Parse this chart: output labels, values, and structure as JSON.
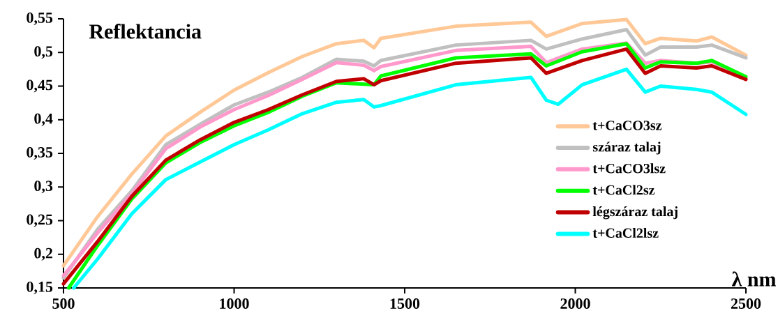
{
  "chart_data": {
    "type": "line",
    "title": "Reflektancia",
    "xlabel": "λ nm",
    "xlim": [
      500,
      2500
    ],
    "ylim": [
      0.15,
      0.55
    ],
    "xticks": [
      500,
      1000,
      1500,
      2000,
      2500
    ],
    "yticks": [
      {
        "value": 0.15,
        "label": "0,15"
      },
      {
        "value": 0.2,
        "label": "0,2"
      },
      {
        "value": 0.25,
        "label": "0,25"
      },
      {
        "value": 0.3,
        "label": "0,3"
      },
      {
        "value": 0.35,
        "label": "0,35"
      },
      {
        "value": 0.4,
        "label": "0,4"
      },
      {
        "value": 0.45,
        "label": "0,45"
      },
      {
        "value": 0.5,
        "label": "0,5"
      },
      {
        "value": 0.55,
        "label": "0,55"
      }
    ],
    "grid": false,
    "legend": "right",
    "series": [
      {
        "name": "t+CaCO3sz",
        "color": "#ffc896",
        "x": [
          500,
          600,
          700,
          800,
          900,
          1000,
          1100,
          1200,
          1300,
          1380,
          1410,
          1430,
          1650,
          1870,
          1915,
          2020,
          2150,
          2205,
          2250,
          2355,
          2400,
          2500
        ],
        "values": [
          0.183,
          0.256,
          0.319,
          0.376,
          0.411,
          0.444,
          0.47,
          0.494,
          0.513,
          0.518,
          0.507,
          0.521,
          0.539,
          0.545,
          0.524,
          0.543,
          0.549,
          0.513,
          0.521,
          0.517,
          0.523,
          0.496
        ]
      },
      {
        "name": "száraz talaj",
        "color": "#c0c0c0",
        "x": [
          500,
          600,
          700,
          800,
          900,
          1000,
          1100,
          1200,
          1300,
          1380,
          1410,
          1430,
          1650,
          1870,
          1915,
          2020,
          2150,
          2205,
          2250,
          2355,
          2400,
          2500
        ],
        "values": [
          0.165,
          0.237,
          0.294,
          0.363,
          0.393,
          0.422,
          0.441,
          0.463,
          0.49,
          0.487,
          0.48,
          0.488,
          0.511,
          0.518,
          0.505,
          0.52,
          0.534,
          0.496,
          0.508,
          0.508,
          0.511,
          0.492
        ]
      },
      {
        "name": "t+CaCO3lsz",
        "color": "#ff99cc",
        "x": [
          500,
          600,
          700,
          800,
          900,
          1000,
          1100,
          1200,
          1300,
          1380,
          1410,
          1430,
          1650,
          1870,
          1915,
          2020,
          2150,
          2205,
          2250,
          2355,
          2400,
          2500
        ],
        "values": [
          0.168,
          0.232,
          0.29,
          0.357,
          0.389,
          0.415,
          0.436,
          0.46,
          0.485,
          0.481,
          0.473,
          0.479,
          0.503,
          0.509,
          0.485,
          0.505,
          0.514,
          0.484,
          0.488,
          0.484,
          0.486,
          0.46
        ]
      },
      {
        "name": "t+CaCl2sz",
        "color": "#00ff00",
        "x": [
          515,
          600,
          700,
          800,
          900,
          1000,
          1100,
          1200,
          1300,
          1380,
          1410,
          1430,
          1650,
          1870,
          1915,
          2020,
          2150,
          2205,
          2250,
          2355,
          2400,
          2500
        ],
        "values": [
          0.15,
          0.213,
          0.282,
          0.336,
          0.366,
          0.391,
          0.411,
          0.435,
          0.455,
          null,
          0.452,
          0.465,
          0.492,
          0.498,
          0.48,
          0.501,
          0.513,
          0.477,
          0.486,
          0.484,
          0.488,
          0.464
        ]
      },
      {
        "name": "légszáraz talaj",
        "color": "#c00000",
        "x": [
          500,
          600,
          700,
          800,
          900,
          1000,
          1100,
          1200,
          1300,
          1380,
          1410,
          1430,
          1650,
          1870,
          1915,
          2020,
          2150,
          2205,
          2250,
          2355,
          2400,
          2500
        ],
        "values": [
          0.156,
          0.219,
          0.286,
          0.34,
          0.37,
          0.396,
          0.415,
          0.437,
          0.457,
          0.461,
          0.452,
          0.458,
          0.484,
          0.492,
          0.469,
          0.488,
          0.505,
          0.469,
          0.48,
          0.477,
          0.48,
          0.46
        ]
      },
      {
        "name": "t+CaCl2lsz",
        "color": "#00ffff",
        "x": [
          530,
          600,
          700,
          800,
          900,
          1000,
          1100,
          1200,
          1300,
          1380,
          1410,
          1430,
          1650,
          1870,
          1915,
          1950,
          2020,
          2150,
          2205,
          2250,
          2355,
          2400,
          2500
        ],
        "values": [
          0.15,
          0.193,
          0.26,
          0.311,
          0.337,
          0.363,
          0.385,
          0.409,
          0.426,
          0.43,
          0.419,
          0.421,
          0.452,
          0.463,
          0.429,
          0.423,
          0.452,
          0.475,
          0.441,
          0.45,
          0.445,
          0.441,
          0.408
        ]
      }
    ]
  }
}
